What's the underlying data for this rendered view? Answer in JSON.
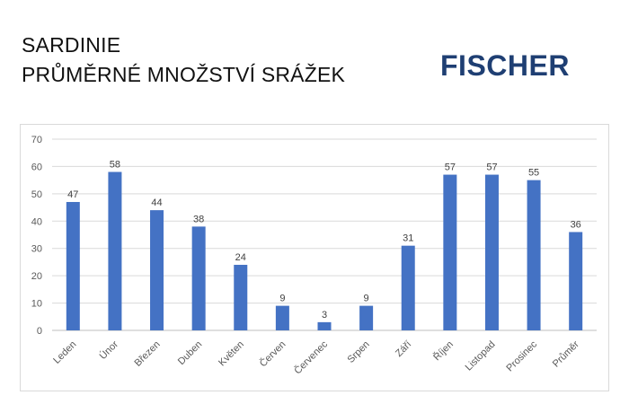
{
  "header": {
    "title_line1": "SARDINIE",
    "title_line2": "PRŮMĚRNÉ MNOŽSTVÍ SRÁŽEK",
    "logo_text": "FISCHER",
    "logo_color": "#1f3f73"
  },
  "chart_data": {
    "type": "bar",
    "categories": [
      "Leden",
      "Únor",
      "Březen",
      "Duben",
      "Květen",
      "Červen",
      "Červenec",
      "Srpen",
      "Září",
      "Říjen",
      "Listopad",
      "Prosinec",
      "Průměr"
    ],
    "values": [
      47,
      58,
      44,
      38,
      24,
      9,
      3,
      9,
      31,
      57,
      57,
      55,
      36
    ],
    "ylim": [
      0,
      70
    ],
    "yticks": [
      0,
      10,
      20,
      30,
      40,
      50,
      60,
      70
    ],
    "grid": true,
    "data_labels": true,
    "bar_color": "#4472c4",
    "title": "",
    "xlabel": "",
    "ylabel": ""
  }
}
